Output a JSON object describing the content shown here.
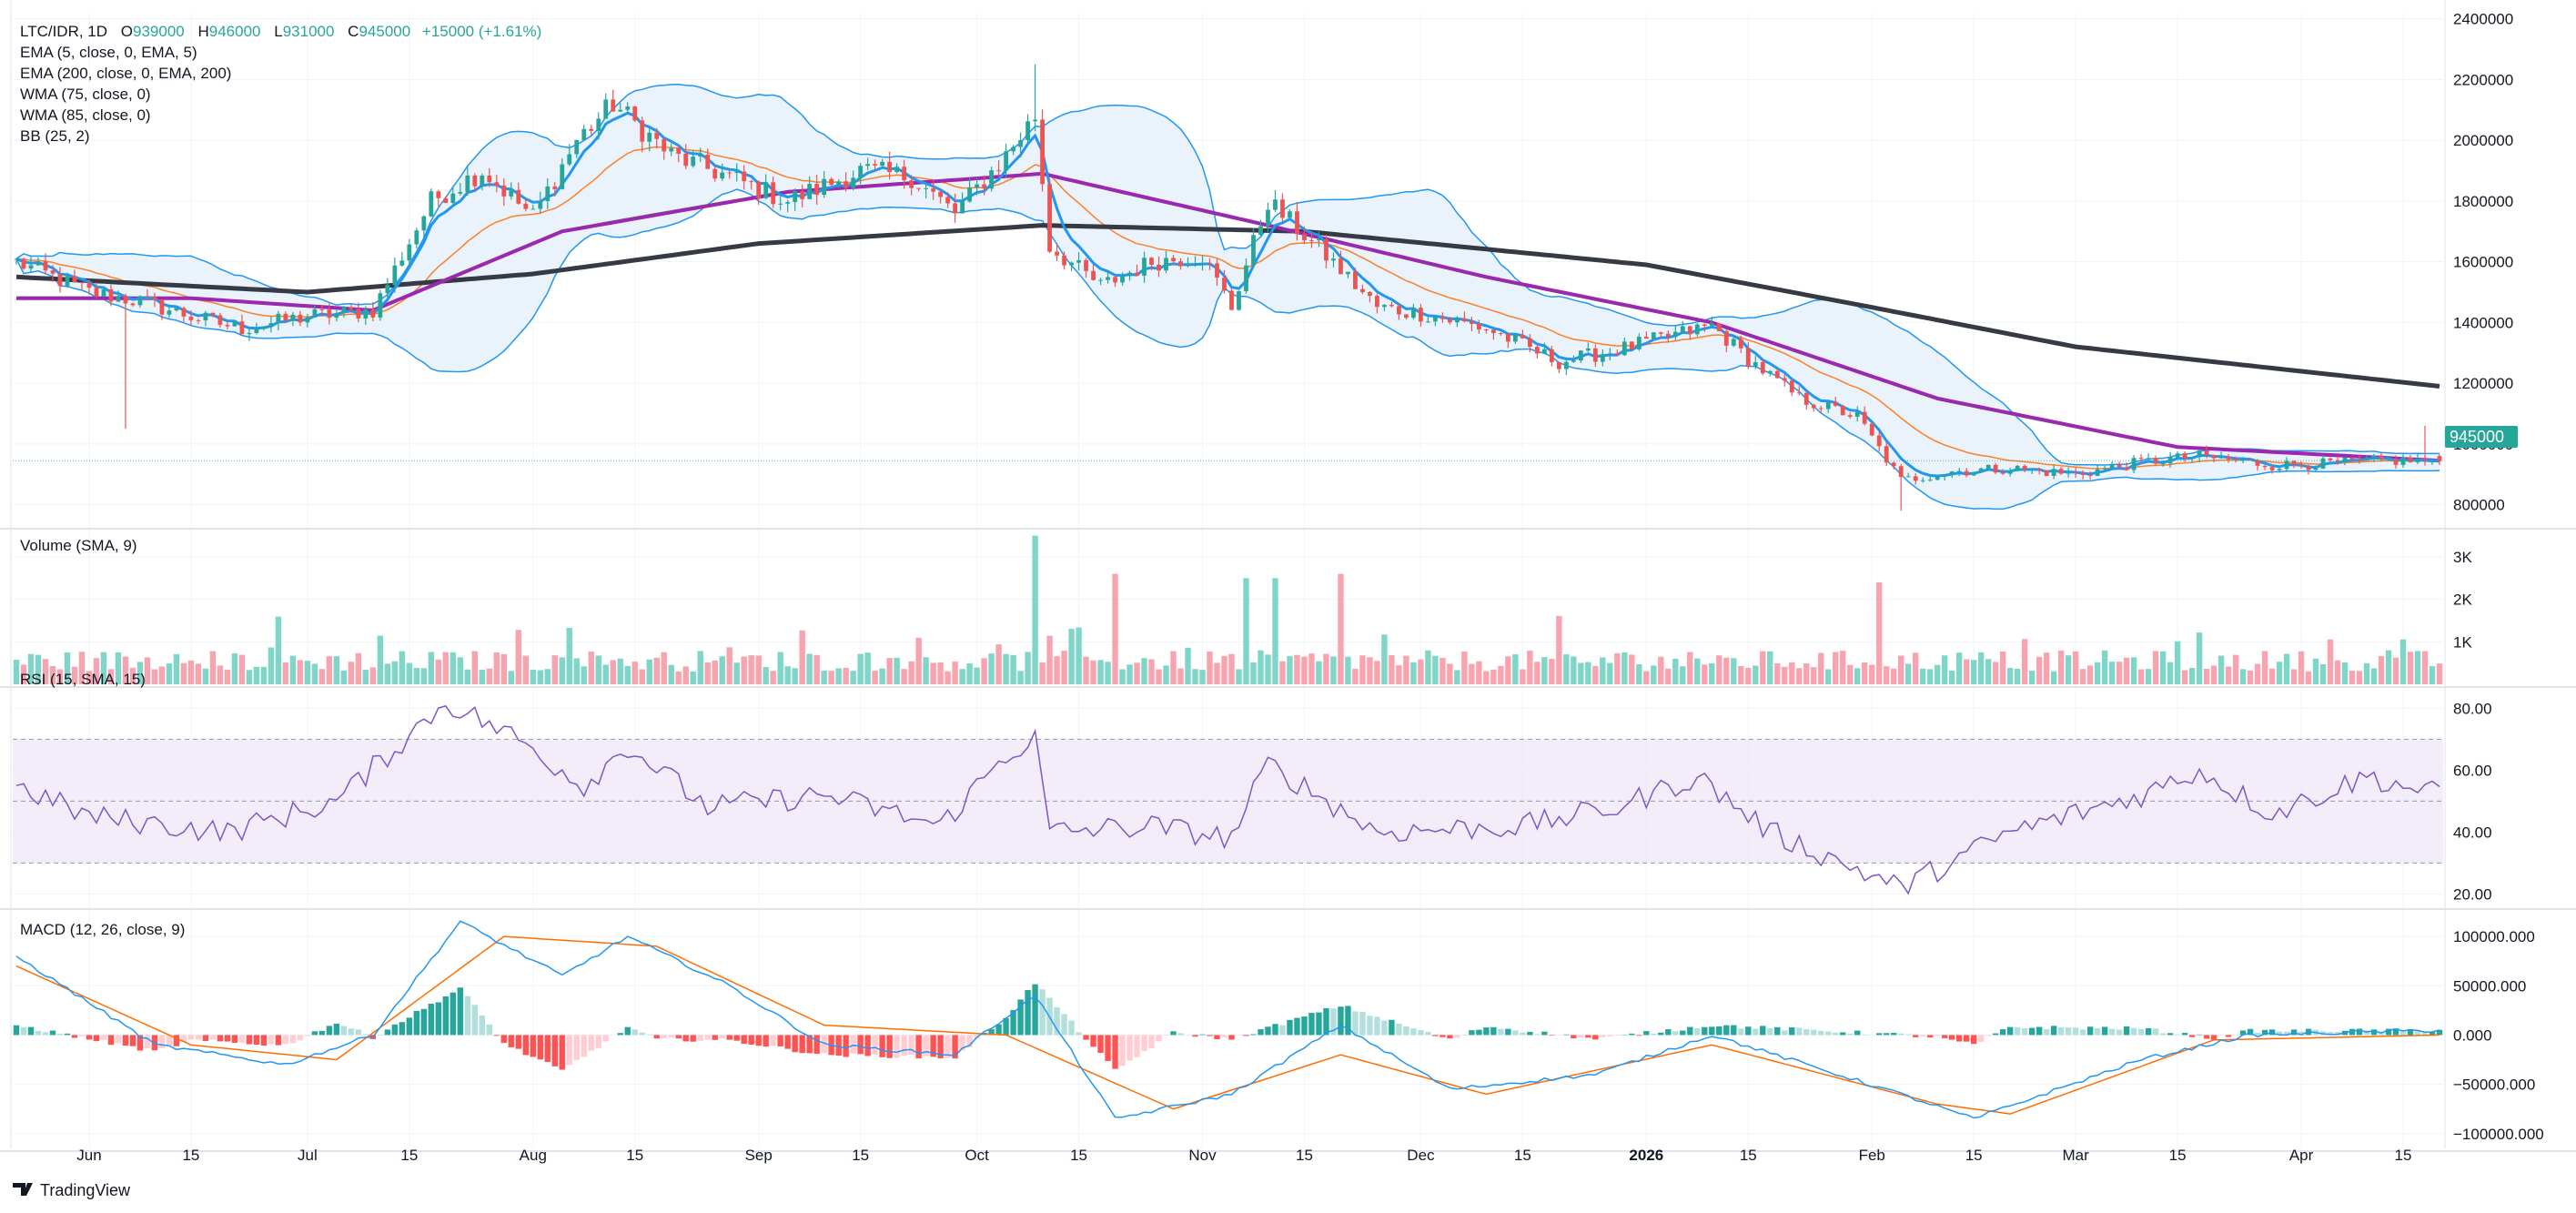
{
  "header": {
    "symbol": "LTC/IDR, 1D",
    "ohlc": [
      {
        "k": "O",
        "v": "939000"
      },
      {
        "k": "H",
        "v": "946000"
      },
      {
        "k": "L",
        "v": "931000"
      },
      {
        "k": "C",
        "v": "945000"
      }
    ],
    "change": "+15000 (+1.61%)"
  },
  "indicators": [
    "EMA (5, close, 0, EMA, 5)",
    "EMA (200, close, 0, EMA, 200)",
    "WMA (75, close, 0)",
    "WMA (85, close, 0)",
    "BB (25, 2)"
  ],
  "volume_title": "Volume (SMA, 9)",
  "rsi_title": "RSI (15, SMA, 15)",
  "macd_title": "MACD (12, 26, close, 9)",
  "last_price_label": "945000",
  "brand": "TradingView",
  "colors": {
    "up": "#26a69a",
    "down": "#ef5350",
    "up_volume": "#7fd6c8",
    "down_volume": "#f6a5b0",
    "ema5": "#2196f3",
    "ema200": "#363a45",
    "wma75": "#4caf50",
    "wma85": "#9c27b0",
    "bb_line": "#2196f3",
    "bb_fill": "#eaf3fb",
    "rsi": "#7e57c2",
    "rsi_band": "#ede7f6",
    "macd": "#2196f3",
    "signal": "#ff6d00"
  },
  "chart_data": [
    {
      "type": "candlestick",
      "name": "price",
      "y_ticks": [
        "2400000",
        "2200000",
        "2000000",
        "1800000",
        "1600000",
        "1400000",
        "1200000",
        "1000000",
        "800000"
      ],
      "ylim": [
        730000,
        2420000
      ],
      "x_ticks": [
        {
          "label": "Jun",
          "date": "2025-06-01"
        },
        {
          "label": "15",
          "date": "2025-06-15"
        },
        {
          "label": "Jul",
          "date": "2025-07-01"
        },
        {
          "label": "15",
          "date": "2025-07-15"
        },
        {
          "label": "Aug",
          "date": "2025-08-01"
        },
        {
          "label": "15",
          "date": "2025-08-15"
        },
        {
          "label": "Sep",
          "date": "2025-09-01"
        },
        {
          "label": "15",
          "date": "2025-09-15"
        },
        {
          "label": "Oct",
          "date": "2025-10-01"
        },
        {
          "label": "15",
          "date": "2025-10-15"
        },
        {
          "label": "Nov",
          "date": "2025-11-01"
        },
        {
          "label": "15",
          "date": "2025-11-15"
        },
        {
          "label": "Dec",
          "date": "2025-12-01"
        },
        {
          "label": "15",
          "date": "2025-12-15"
        },
        {
          "label": "2026",
          "date": "2026-01-01"
        },
        {
          "label": "15",
          "date": "2026-01-15"
        },
        {
          "label": "Feb",
          "date": "2026-02-01"
        },
        {
          "label": "15",
          "date": "2026-02-15"
        },
        {
          "label": "Mar",
          "date": "2026-03-01"
        },
        {
          "label": "15",
          "date": "2026-03-15"
        },
        {
          "label": "Apr",
          "date": "2026-04-01"
        },
        {
          "label": "15",
          "date": "2026-04-15"
        }
      ],
      "x_range": [
        "2025-05-22",
        "2026-04-20"
      ],
      "close_path": [
        [
          "2025-05-22",
          1600000
        ],
        [
          "2025-06-01",
          1500000
        ],
        [
          "2025-06-08",
          1470000
        ],
        [
          "2025-06-15",
          1420000
        ],
        [
          "2025-06-22",
          1380000
        ],
        [
          "2025-07-01",
          1420000
        ],
        [
          "2025-07-10",
          1440000
        ],
        [
          "2025-07-18",
          1800000
        ],
        [
          "2025-07-25",
          1900000
        ],
        [
          "2025-08-01",
          1750000
        ],
        [
          "2025-08-07",
          2000000
        ],
        [
          "2025-08-12",
          2120000
        ],
        [
          "2025-08-20",
          1950000
        ],
        [
          "2025-08-28",
          1880000
        ],
        [
          "2025-09-05",
          1800000
        ],
        [
          "2025-09-15",
          1900000
        ],
        [
          "2025-09-22",
          1880000
        ],
        [
          "2025-09-28",
          1760000
        ],
        [
          "2025-10-05",
          1950000
        ],
        [
          "2025-10-09",
          2080000
        ],
        [
          "2025-10-11",
          1650000
        ],
        [
          "2025-10-18",
          1520000
        ],
        [
          "2025-10-25",
          1600000
        ],
        [
          "2025-11-01",
          1620000
        ],
        [
          "2025-11-05",
          1450000
        ],
        [
          "2025-11-10",
          1800000
        ],
        [
          "2025-11-18",
          1620000
        ],
        [
          "2025-11-25",
          1450000
        ],
        [
          "2025-12-01",
          1430000
        ],
        [
          "2025-12-10",
          1380000
        ],
        [
          "2025-12-20",
          1270000
        ],
        [
          "2025-12-28",
          1310000
        ],
        [
          "2026-01-05",
          1360000
        ],
        [
          "2026-01-10",
          1390000
        ],
        [
          "2026-01-15",
          1280000
        ],
        [
          "2026-01-22",
          1150000
        ],
        [
          "2026-01-30",
          1090000
        ],
        [
          "2026-02-05",
          880000
        ],
        [
          "2026-02-12",
          910000
        ],
        [
          "2026-02-20",
          920000
        ],
        [
          "2026-03-01",
          900000
        ],
        [
          "2026-03-10",
          940000
        ],
        [
          "2026-03-18",
          960000
        ],
        [
          "2026-03-28",
          930000
        ],
        [
          "2026-04-05",
          935000
        ],
        [
          "2026-04-12",
          945000
        ],
        [
          "2026-04-19",
          945000
        ]
      ],
      "last": {
        "date": "2026-04-19",
        "open": 939000,
        "high": 946000,
        "low": 931000,
        "close": 945000
      },
      "spikes": [
        {
          "date": "2025-06-06",
          "low": 1050000
        },
        {
          "date": "2025-10-09",
          "high": 2250000
        },
        {
          "date": "2026-02-05",
          "low": 780000
        },
        {
          "date": "2026-04-18",
          "high": 1060000
        }
      ],
      "ema200_path": [
        [
          "2025-05-22",
          1550000
        ],
        [
          "2025-07-01",
          1500000
        ],
        [
          "2025-08-01",
          1560000
        ],
        [
          "2025-09-01",
          1660000
        ],
        [
          "2025-10-10",
          1720000
        ],
        [
          "2025-11-15",
          1700000
        ],
        [
          "2026-01-01",
          1590000
        ],
        [
          "2026-02-01",
          1450000
        ],
        [
          "2026-03-01",
          1320000
        ],
        [
          "2026-04-20",
          1190000
        ]
      ],
      "wma_path": [
        [
          "2025-05-22",
          1480000
        ],
        [
          "2025-06-15",
          1480000
        ],
        [
          "2025-07-10",
          1440000
        ],
        [
          "2025-08-05",
          1700000
        ],
        [
          "2025-09-05",
          1830000
        ],
        [
          "2025-10-10",
          1890000
        ],
        [
          "2025-11-10",
          1720000
        ],
        [
          "2025-12-10",
          1550000
        ],
        [
          "2026-01-10",
          1400000
        ],
        [
          "2026-02-10",
          1150000
        ],
        [
          "2026-03-15",
          990000
        ],
        [
          "2026-04-20",
          945000
        ]
      ]
    },
    {
      "type": "bar",
      "name": "volume",
      "y_ticks": [
        "3K",
        "2K",
        "1K"
      ],
      "ylim": [
        0,
        3600
      ],
      "volume_spikes": [
        {
          "date": "2025-10-09",
          "value": 3500
        },
        {
          "date": "2025-10-20",
          "value": 2600
        },
        {
          "date": "2025-11-07",
          "value": 2500
        },
        {
          "date": "2025-11-11",
          "value": 2500
        },
        {
          "date": "2025-11-20",
          "value": 2600
        },
        {
          "date": "2026-02-02",
          "value": 2400
        }
      ]
    },
    {
      "type": "line",
      "name": "rsi",
      "y_ticks": [
        "80.00",
        "60.00",
        "40.00",
        "20.00"
      ],
      "ylim": [
        16,
        86
      ],
      "band": [
        30,
        70
      ],
      "mid": 50,
      "rsi_path": [
        [
          "2025-05-22",
          55
        ],
        [
          "2025-06-01",
          45
        ],
        [
          "2025-06-20",
          40
        ],
        [
          "2025-07-05",
          50
        ],
        [
          "2025-07-20",
          82
        ],
        [
          "2025-07-30",
          70
        ],
        [
          "2025-08-08",
          55
        ],
        [
          "2025-08-14",
          68
        ],
        [
          "2025-08-25",
          48
        ],
        [
          "2025-09-10",
          52
        ],
        [
          "2025-09-26",
          42
        ],
        [
          "2025-10-05",
          65
        ],
        [
          "2025-10-09",
          70
        ],
        [
          "2025-10-11",
          40
        ],
        [
          "2025-10-25",
          42
        ],
        [
          "2025-11-05",
          38
        ],
        [
          "2025-11-10",
          62
        ],
        [
          "2025-11-25",
          40
        ],
        [
          "2025-12-15",
          42
        ],
        [
          "2025-12-28",
          48
        ],
        [
          "2026-01-08",
          58
        ],
        [
          "2026-01-18",
          40
        ],
        [
          "2026-02-05",
          22
        ],
        [
          "2026-02-20",
          40
        ],
        [
          "2026-03-10",
          52
        ],
        [
          "2026-03-18",
          60
        ],
        [
          "2026-03-28",
          46
        ],
        [
          "2026-04-10",
          58
        ],
        [
          "2026-04-20",
          52
        ]
      ]
    },
    {
      "type": "line",
      "name": "macd",
      "y_ticks": [
        "100000.000",
        "50000.000",
        "0.000",
        "−50000.000",
        "−100000.000"
      ],
      "ylim": [
        -115000,
        125000
      ],
      "macd_path": [
        [
          "2025-05-22",
          80000
        ],
        [
          "2025-06-10",
          -10000
        ],
        [
          "2025-06-28",
          -30000
        ],
        [
          "2025-07-10",
          0
        ],
        [
          "2025-07-22",
          115000
        ],
        [
          "2025-08-05",
          60000
        ],
        [
          "2025-08-14",
          100000
        ],
        [
          "2025-08-28",
          50000
        ],
        [
          "2025-09-10",
          -10000
        ],
        [
          "2025-09-28",
          -20000
        ],
        [
          "2025-10-09",
          40000
        ],
        [
          "2025-10-20",
          -85000
        ],
        [
          "2025-11-05",
          -60000
        ],
        [
          "2025-11-20",
          10000
        ],
        [
          "2025-12-05",
          -55000
        ],
        [
          "2025-12-25",
          -40000
        ],
        [
          "2026-01-10",
          0
        ],
        [
          "2026-02-05",
          -60000
        ],
        [
          "2026-02-15",
          -85000
        ],
        [
          "2026-03-10",
          -25000
        ],
        [
          "2026-03-25",
          0
        ],
        [
          "2026-04-20",
          5000
        ]
      ],
      "signal_path": [
        [
          "2025-05-22",
          70000
        ],
        [
          "2025-06-15",
          -10000
        ],
        [
          "2025-07-05",
          -25000
        ],
        [
          "2025-07-28",
          100000
        ],
        [
          "2025-08-18",
          90000
        ],
        [
          "2025-09-10",
          10000
        ],
        [
          "2025-10-05",
          0
        ],
        [
          "2025-10-28",
          -75000
        ],
        [
          "2025-11-20",
          -20000
        ],
        [
          "2025-12-10",
          -60000
        ],
        [
          "2026-01-10",
          -10000
        ],
        [
          "2026-02-10",
          -70000
        ],
        [
          "2026-02-20",
          -80000
        ],
        [
          "2026-03-20",
          -5000
        ],
        [
          "2026-04-20",
          0
        ]
      ]
    }
  ]
}
